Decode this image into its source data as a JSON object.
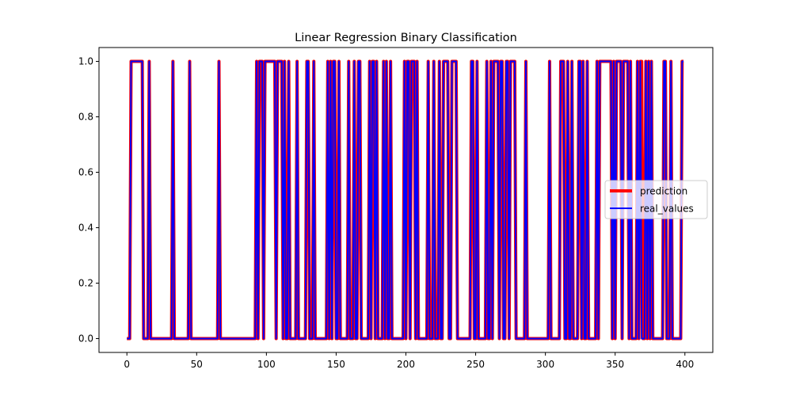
{
  "chart_data": {
    "type": "line",
    "title": "Linear Regression Binary Classification",
    "xlabel": "",
    "ylabel": "",
    "xlim": [
      -20,
      420
    ],
    "ylim": [
      -0.05,
      1.05
    ],
    "x_ticks": [
      0,
      50,
      100,
      150,
      200,
      250,
      300,
      350,
      400
    ],
    "y_ticks": [
      0.0,
      0.2,
      0.4,
      0.6,
      0.8,
      1.0
    ],
    "x_tick_labels": [
      "0",
      "50",
      "100",
      "150",
      "200",
      "250",
      "300",
      "350",
      "400"
    ],
    "y_tick_labels": [
      "0.0",
      "0.2",
      "0.4",
      "0.6",
      "0.8",
      "1.0"
    ],
    "grid": false,
    "legend_position": "center-right",
    "num_points": 400,
    "positive_indices": [
      3,
      4,
      5,
      6,
      7,
      8,
      9,
      10,
      11,
      16,
      33,
      45,
      66,
      93,
      95,
      96,
      97,
      99,
      100,
      101,
      102,
      103,
      104,
      105,
      106,
      108,
      109,
      110,
      111,
      113,
      116,
      122,
      129,
      130,
      134,
      144,
      146,
      148,
      149,
      152,
      159,
      163,
      166,
      167,
      174,
      176,
      177,
      179,
      184,
      186,
      189,
      199,
      201,
      202,
      204,
      205,
      206,
      208,
      216,
      220,
      224,
      227,
      228,
      229,
      230,
      233,
      234,
      235,
      236,
      247,
      248,
      251,
      258,
      261,
      263,
      264,
      265,
      266,
      268,
      269,
      272,
      273,
      275,
      276,
      277,
      278,
      286,
      303,
      311,
      312,
      313,
      316,
      319,
      324,
      325,
      327,
      330,
      337,
      339,
      340,
      341,
      342,
      343,
      344,
      345,
      346,
      347,
      349,
      351,
      352,
      353,
      354,
      356,
      357,
      358,
      359,
      361,
      366,
      368,
      372,
      374,
      376,
      385,
      386,
      390,
      398,
      399
    ],
    "series": [
      {
        "name": "prediction",
        "color": "#ff0000",
        "diff_indices": [
          369
        ]
      },
      {
        "name": "real_values",
        "color": "#0000ff",
        "diff_indices": []
      }
    ]
  }
}
